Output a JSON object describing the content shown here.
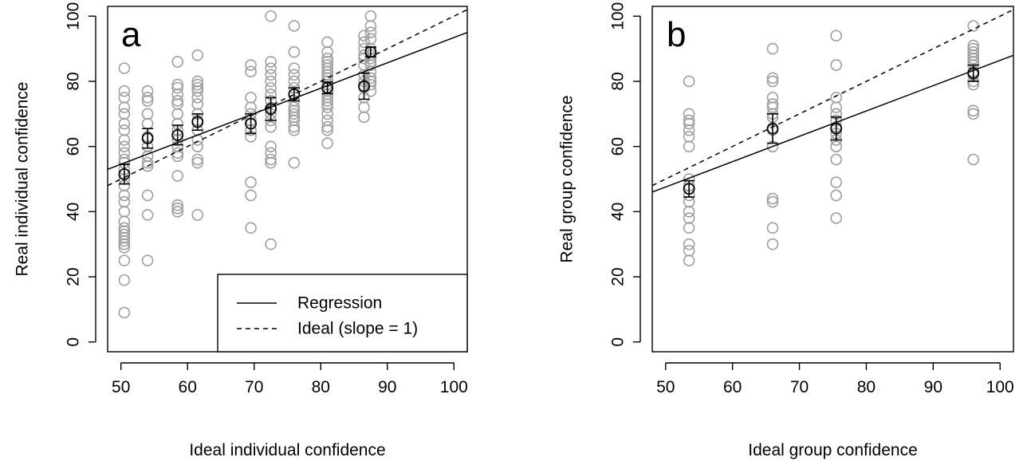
{
  "chart_data": [
    {
      "type": "scatter",
      "panel_label": "a",
      "xlabel": "Ideal individual confidence",
      "ylabel": "Real individual confidence",
      "xlim": [
        48,
        102
      ],
      "ylim": [
        -3,
        103
      ],
      "xticks": [
        50,
        60,
        70,
        80,
        90,
        100
      ],
      "yticks": [
        0,
        20,
        40,
        60,
        80,
        100
      ],
      "grid": false,
      "legend": {
        "position": "bottom-right",
        "entries": [
          {
            "label": "Regression",
            "style": "solid"
          },
          {
            "label": "Ideal (slope = 1)",
            "style": "dashed"
          }
        ]
      },
      "lines": [
        {
          "style": "solid",
          "x": [
            48,
            102
          ],
          "y": [
            53,
            95
          ]
        },
        {
          "style": "dashed",
          "x": [
            48,
            102
          ],
          "y": [
            48,
            102
          ]
        }
      ],
      "points_color": "#9e9e9e",
      "points": [
        {
          "x": 50.5,
          "y": [
            84,
            77,
            75,
            72,
            70,
            67,
            65,
            62,
            60,
            58,
            56,
            55,
            53,
            50,
            48,
            45,
            43,
            40,
            37,
            35,
            34,
            33,
            32,
            31,
            30,
            29,
            25,
            19,
            9
          ]
        },
        {
          "x": 54,
          "y": [
            77,
            75,
            74,
            70,
            67,
            63,
            60,
            57,
            55,
            54,
            45,
            39,
            25
          ]
        },
        {
          "x": 58.5,
          "y": [
            86,
            79,
            78,
            76,
            74,
            73,
            70,
            67,
            65,
            62,
            60,
            58,
            57,
            51,
            42,
            41,
            40
          ]
        },
        {
          "x": 61.5,
          "y": [
            88,
            80,
            79,
            78,
            77,
            75,
            73,
            70,
            68,
            65,
            62,
            60,
            56,
            55,
            39
          ]
        },
        {
          "x": 69.5,
          "y": [
            85,
            83,
            75,
            72,
            70,
            68,
            65,
            63,
            49,
            45,
            35
          ]
        },
        {
          "x": 72.5,
          "y": [
            100,
            86,
            84,
            82,
            80,
            78,
            76,
            74,
            72,
            70,
            68,
            66,
            60,
            58,
            56,
            55,
            30
          ]
        },
        {
          "x": 76,
          "y": [
            97,
            89,
            84,
            82,
            80,
            78,
            76,
            74,
            72,
            71,
            70,
            69,
            68,
            66,
            65,
            55
          ]
        },
        {
          "x": 81,
          "y": [
            92,
            89,
            87,
            86,
            85,
            84,
            83,
            82,
            81,
            80,
            79,
            78,
            77,
            76,
            75,
            74,
            73,
            72,
            70,
            68,
            66,
            65,
            61
          ]
        },
        {
          "x": 86.5,
          "y": [
            94,
            92,
            90,
            88,
            87,
            85,
            82,
            80,
            78,
            75,
            72,
            69
          ]
        },
        {
          "x": 87.5,
          "y": [
            100,
            97,
            95,
            93,
            90,
            89,
            88,
            87,
            86,
            85,
            83,
            81,
            80,
            79,
            77
          ]
        }
      ],
      "means": [
        {
          "x": 50.5,
          "y": 51.5,
          "err": 3
        },
        {
          "x": 54,
          "y": 62.5,
          "err": 3
        },
        {
          "x": 58.5,
          "y": 63.5,
          "err": 3
        },
        {
          "x": 61.5,
          "y": 67.5,
          "err": 2.5
        },
        {
          "x": 69.5,
          "y": 67,
          "err": 3
        },
        {
          "x": 72.5,
          "y": 71.5,
          "err": 3.5
        },
        {
          "x": 76,
          "y": 76,
          "err": 2
        },
        {
          "x": 81,
          "y": 78,
          "err": 1.8
        },
        {
          "x": 86.5,
          "y": 78.5,
          "err": 4
        },
        {
          "x": 87.5,
          "y": 89,
          "err": 1.5
        }
      ]
    },
    {
      "type": "scatter",
      "panel_label": "b",
      "xlabel": "Ideal group confidence",
      "ylabel": "Real group confidence",
      "xlim": [
        48,
        102
      ],
      "ylim": [
        -3,
        103
      ],
      "xticks": [
        50,
        60,
        70,
        80,
        90,
        100
      ],
      "yticks": [
        0,
        20,
        40,
        60,
        80,
        100
      ],
      "grid": false,
      "lines": [
        {
          "style": "solid",
          "x": [
            48,
            102
          ],
          "y": [
            46,
            88
          ]
        },
        {
          "style": "dashed",
          "x": [
            48,
            102
          ],
          "y": [
            48,
            102
          ]
        }
      ],
      "points_color": "#9e9e9e",
      "points": [
        {
          "x": 53.5,
          "y": [
            80,
            70,
            68,
            67,
            65,
            63,
            60,
            50,
            48,
            45,
            43,
            40,
            38,
            35,
            30,
            28,
            25
          ]
        },
        {
          "x": 66,
          "y": [
            90,
            81,
            80,
            75,
            73,
            72,
            70,
            69,
            65,
            60,
            44,
            43,
            35,
            30
          ]
        },
        {
          "x": 75.5,
          "y": [
            94,
            85,
            75,
            72,
            70,
            68,
            66,
            64,
            62,
            60,
            56,
            49,
            45,
            38
          ]
        },
        {
          "x": 96,
          "y": [
            97,
            91,
            90,
            89,
            88,
            87,
            86,
            85,
            83,
            82,
            80,
            79,
            71,
            70,
            56
          ]
        }
      ],
      "means": [
        {
          "x": 53.5,
          "y": 47,
          "err": 2.5
        },
        {
          "x": 66,
          "y": 65.5,
          "err": 4.5
        },
        {
          "x": 75.5,
          "y": 65.5,
          "err": 3.5
        },
        {
          "x": 96,
          "y": 82.5,
          "err": 2.5
        }
      ]
    }
  ]
}
